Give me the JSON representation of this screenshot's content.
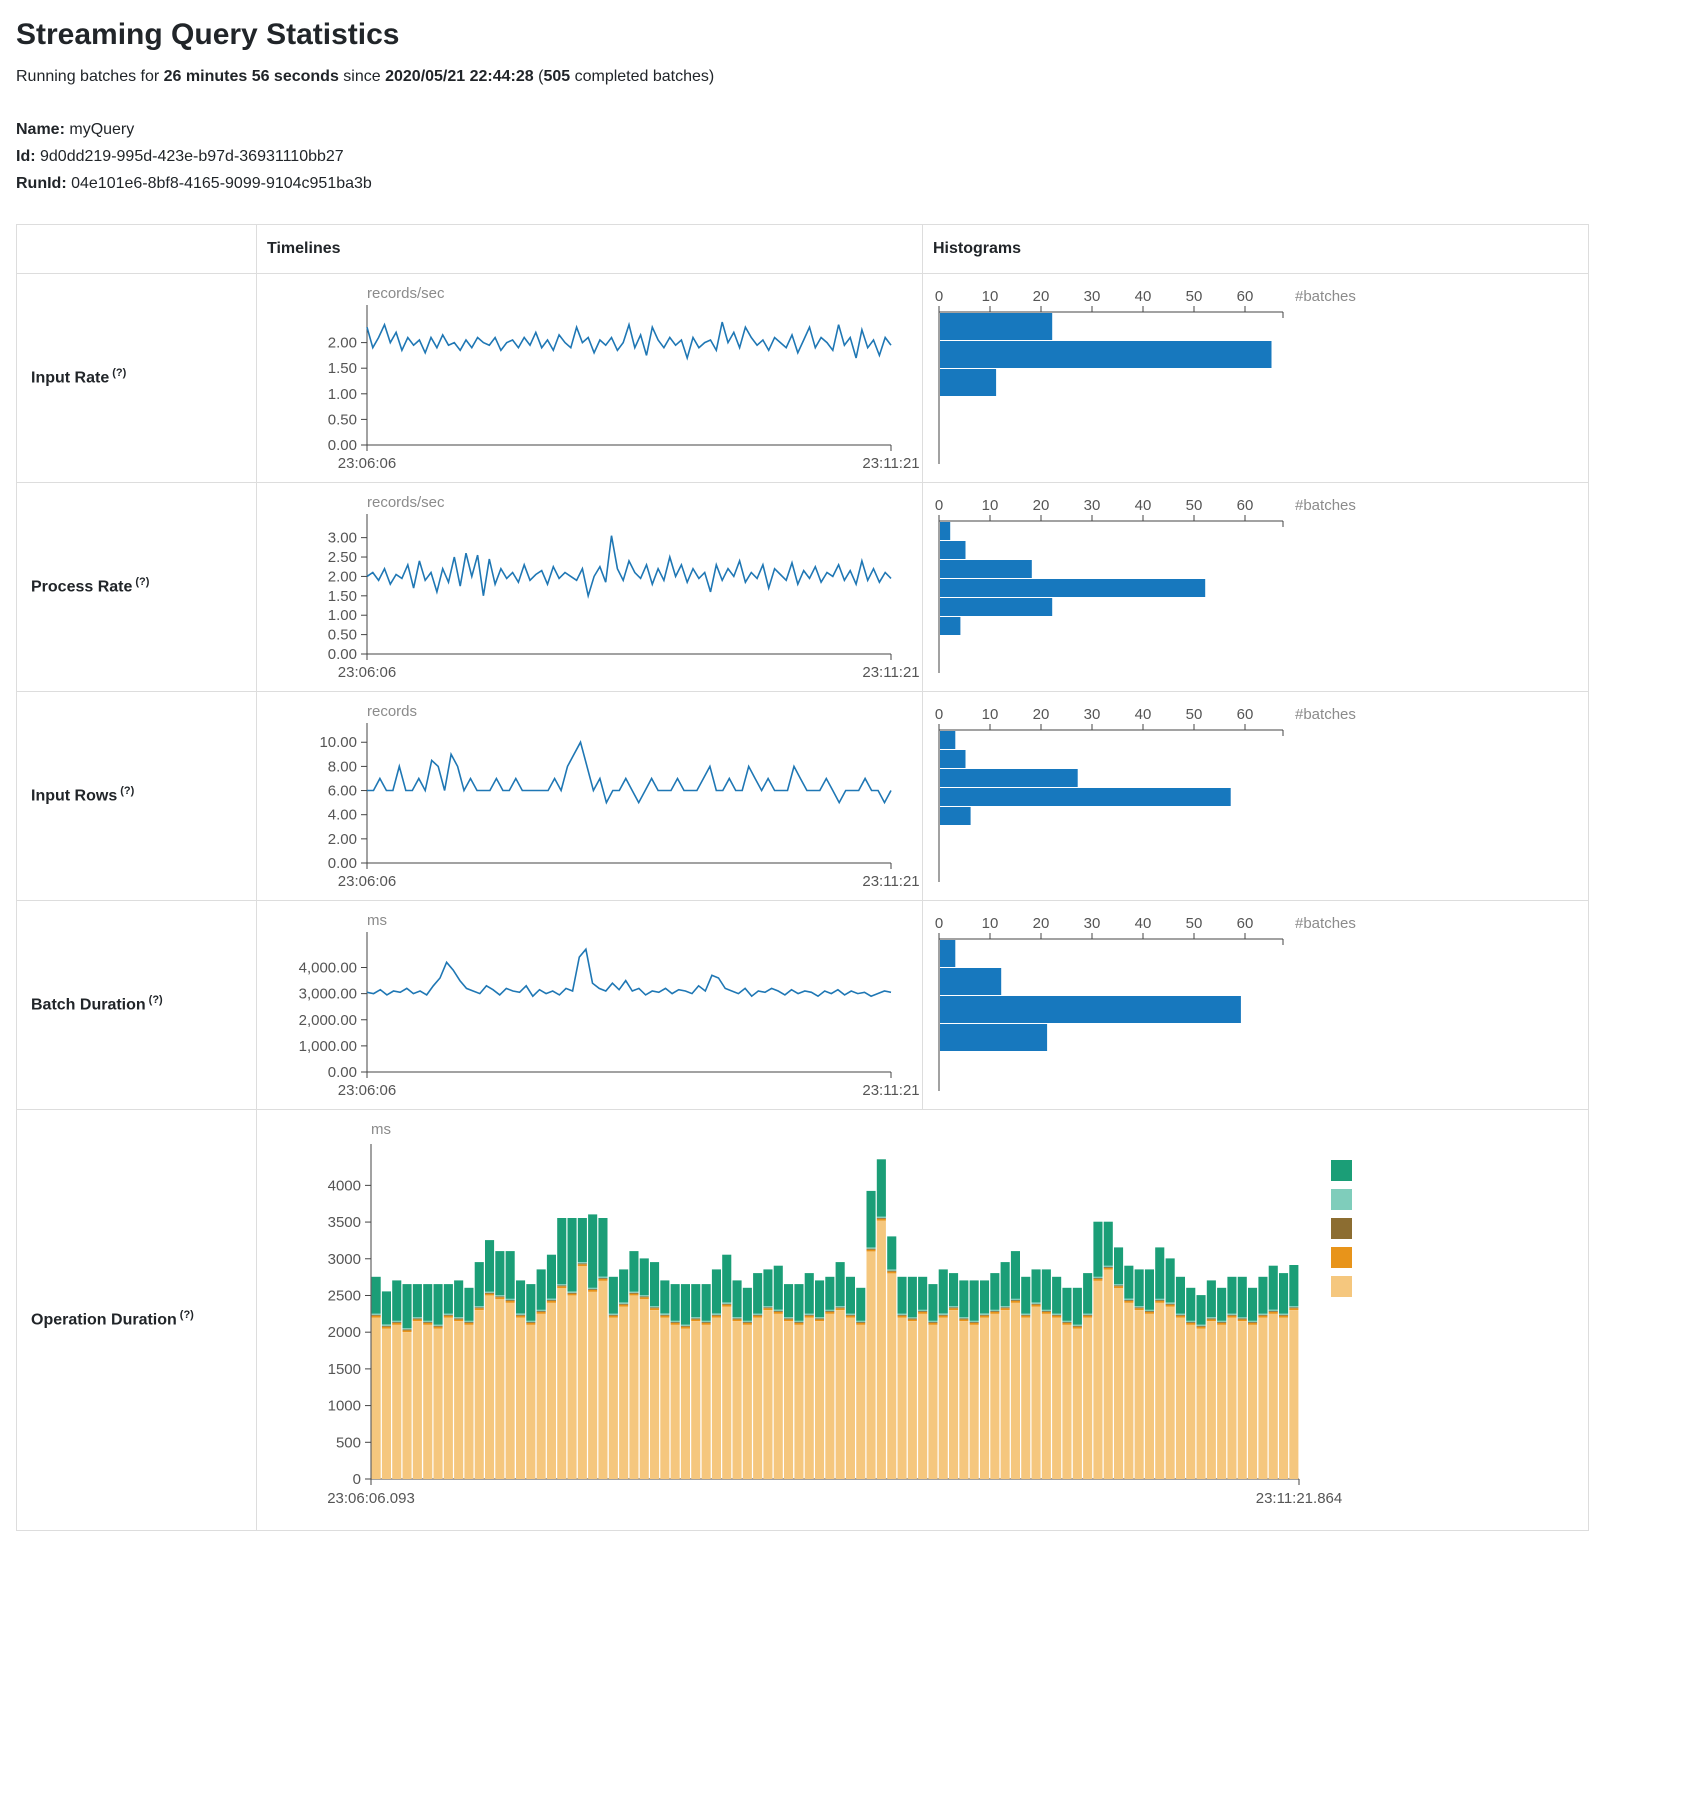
{
  "page": {
    "title": "Streaming Query Statistics",
    "subtitle": {
      "prefix": "Running batches for ",
      "duration": "26 minutes 56 seconds",
      "since": " since ",
      "start_time": "2020/05/21 22:44:28",
      "paren": " (",
      "completed_batches": "505",
      "suffix": " completed batches)"
    },
    "query": {
      "name_label": "Name:",
      "name_value": "myQuery",
      "id_label": "Id:",
      "id_value": "9d0dd219-995d-423e-b97d-36931110bb27",
      "runid_label": "RunId:",
      "runid_value": "04e101e6-8bf8-4165-9099-9104c951ba3b"
    }
  },
  "table": {
    "timelines_header": "Timelines",
    "histograms_header": "Histograms",
    "help_marker": "(?)",
    "row_labels": [
      "Input Rate",
      "Process Rate",
      "Input Rows",
      "Batch Duration",
      "Operation Duration"
    ]
  },
  "colors": {
    "line": "#1f77b4",
    "hist": "#1778be",
    "axis": "#444444",
    "tick_text": "#555555",
    "unit_text": "#8b8b8b",
    "border": "#dddddd"
  },
  "chart_data": [
    {
      "id": "input-rate-timeline",
      "type": "line",
      "row": "Input Rate",
      "unit": "records/sec",
      "x_start_label": "23:06:06",
      "x_end_label": "23:11:21",
      "ylim": [
        0,
        2.5
      ],
      "yticks": [
        {
          "v": 0,
          "label": "0.00"
        },
        {
          "v": 0.5,
          "label": "0.50"
        },
        {
          "v": 1,
          "label": "1.00"
        },
        {
          "v": 1.5,
          "label": "1.50"
        },
        {
          "v": 2,
          "label": "2.00"
        }
      ],
      "values": [
        2.3,
        1.9,
        2.1,
        2.35,
        2.0,
        2.2,
        1.85,
        2.1,
        1.95,
        2.05,
        1.8,
        2.1,
        1.9,
        2.15,
        1.95,
        2.0,
        1.85,
        2.05,
        1.9,
        2.1,
        2.0,
        1.95,
        2.1,
        1.85,
        2.0,
        2.05,
        1.9,
        2.1,
        1.95,
        2.2,
        1.9,
        2.05,
        1.85,
        2.15,
        2.0,
        1.9,
        2.3,
        2.0,
        2.1,
        1.8,
        2.05,
        1.95,
        2.1,
        1.85,
        2.0,
        2.35,
        1.9,
        2.15,
        1.75,
        2.3,
        2.05,
        1.9,
        2.1,
        1.95,
        2.05,
        1.7,
        2.1,
        1.9,
        2.0,
        2.05,
        1.85,
        2.4,
        2.0,
        2.2,
        1.9,
        2.3,
        2.1,
        1.95,
        2.05,
        1.85,
        2.1,
        2.0,
        1.9,
        2.15,
        1.8,
        2.05,
        2.3,
        1.9,
        2.1,
        2.0,
        1.85,
        2.35,
        1.95,
        2.1,
        1.7,
        2.25,
        1.9,
        2.05,
        1.75,
        2.1,
        1.95
      ]
    },
    {
      "id": "input-rate-histogram",
      "type": "hbar",
      "row": "Input Rate",
      "xlabel": "#batches",
      "xticks": [
        0,
        10,
        20,
        30,
        40,
        50,
        60
      ],
      "counts": [
        22,
        65,
        11
      ]
    },
    {
      "id": "process-rate-timeline",
      "type": "line",
      "row": "Process Rate",
      "unit": "records/sec",
      "x_start_label": "23:06:06",
      "x_end_label": "23:11:21",
      "ylim": [
        0,
        3.3
      ],
      "yticks": [
        {
          "v": 0,
          "label": "0.00"
        },
        {
          "v": 0.5,
          "label": "0.50"
        },
        {
          "v": 1,
          "label": "1.00"
        },
        {
          "v": 1.5,
          "label": "1.50"
        },
        {
          "v": 2,
          "label": "2.00"
        },
        {
          "v": 2.5,
          "label": "2.50"
        },
        {
          "v": 3,
          "label": "3.00"
        }
      ],
      "values": [
        2.0,
        2.1,
        1.9,
        2.2,
        1.8,
        2.05,
        1.95,
        2.3,
        1.7,
        2.4,
        1.9,
        2.1,
        1.6,
        2.2,
        1.85,
        2.5,
        1.75,
        2.6,
        2.0,
        2.55,
        1.5,
        2.45,
        1.8,
        2.2,
        1.95,
        2.1,
        1.85,
        2.3,
        1.9,
        2.05,
        2.15,
        1.8,
        2.25,
        1.95,
        2.1,
        2.0,
        1.9,
        2.2,
        1.5,
        2.0,
        2.25,
        1.85,
        3.05,
        2.2,
        1.9,
        2.4,
        2.1,
        1.95,
        2.3,
        1.8,
        2.2,
        1.9,
        2.5,
        2.0,
        2.3,
        1.85,
        2.2,
        1.95,
        2.1,
        1.6,
        2.3,
        1.9,
        2.2,
        2.0,
        2.4,
        1.85,
        2.1,
        1.95,
        2.3,
        1.7,
        2.2,
        2.05,
        1.9,
        2.35,
        1.8,
        2.15,
        1.95,
        2.25,
        1.85,
        2.1,
        2.0,
        2.3,
        1.9,
        2.15,
        1.8,
        2.4,
        1.9,
        2.2,
        1.85,
        2.1,
        1.95
      ]
    },
    {
      "id": "process-rate-histogram",
      "type": "hbar",
      "row": "Process Rate",
      "xlabel": "#batches",
      "xticks": [
        0,
        10,
        20,
        30,
        40,
        50,
        60
      ],
      "counts": [
        2,
        5,
        18,
        52,
        22,
        4
      ]
    },
    {
      "id": "input-rows-timeline",
      "type": "line",
      "row": "Input Rows",
      "unit": "records",
      "x_start_label": "23:06:06",
      "x_end_label": "23:11:21",
      "ylim": [
        0,
        10.6
      ],
      "yticks": [
        {
          "v": 0,
          "label": "0.00"
        },
        {
          "v": 2,
          "label": "2.00"
        },
        {
          "v": 4,
          "label": "4.00"
        },
        {
          "v": 6,
          "label": "6.00"
        },
        {
          "v": 8,
          "label": "8.00"
        },
        {
          "v": 10,
          "label": "10.00"
        }
      ],
      "values": [
        6,
        6,
        7,
        6,
        6,
        8,
        6,
        6,
        7,
        6,
        8.5,
        8,
        6,
        9,
        8,
        6,
        7,
        6,
        6,
        6,
        7,
        6,
        6,
        7,
        6,
        6,
        6,
        6,
        6,
        7,
        6,
        8,
        9,
        10,
        8,
        6,
        7,
        5,
        6,
        6,
        7,
        6,
        5,
        6,
        7,
        6,
        6,
        6,
        7,
        6,
        6,
        6,
        7,
        8,
        6,
        6,
        7,
        6,
        6,
        8,
        7,
        6,
        7,
        6,
        6,
        6,
        8,
        7,
        6,
        6,
        6,
        7,
        6,
        5,
        6,
        6,
        6,
        7,
        6,
        6,
        5,
        6
      ]
    },
    {
      "id": "input-rows-histogram",
      "type": "hbar",
      "row": "Input Rows",
      "xlabel": "#batches",
      "xticks": [
        0,
        10,
        20,
        30,
        40,
        50,
        60
      ],
      "counts": [
        3,
        5,
        27,
        57,
        6
      ]
    },
    {
      "id": "batch-duration-timeline",
      "type": "line",
      "row": "Batch Duration",
      "unit": "ms",
      "x_start_label": "23:06:06",
      "x_end_label": "23:11:21",
      "ylim": [
        0,
        4900
      ],
      "yticks": [
        {
          "v": 0,
          "label": "0.00"
        },
        {
          "v": 1000,
          "label": "1,000.00"
        },
        {
          "v": 2000,
          "label": "2,000.00"
        },
        {
          "v": 3000,
          "label": "3,000.00"
        },
        {
          "v": 4000,
          "label": "4,000.00"
        }
      ],
      "values": [
        3050,
        3000,
        3150,
        2950,
        3100,
        3050,
        3200,
        3000,
        3100,
        2950,
        3300,
        3600,
        4200,
        3900,
        3500,
        3200,
        3100,
        3000,
        3300,
        3150,
        2950,
        3200,
        3100,
        3050,
        3300,
        2900,
        3150,
        3000,
        3100,
        2950,
        3200,
        3100,
        4400,
        4700,
        3400,
        3200,
        3100,
        3400,
        3150,
        3500,
        3100,
        3200,
        2950,
        3100,
        3050,
        3200,
        3000,
        3150,
        3100,
        3000,
        3300,
        3100,
        3700,
        3600,
        3200,
        3100,
        3000,
        3200,
        2900,
        3100,
        3050,
        3200,
        3100,
        2950,
        3150,
        3000,
        3100,
        3050,
        2900,
        3100,
        3000,
        3150,
        2950,
        3100,
        3000,
        3050,
        2900,
        3000,
        3100,
        3050
      ]
    },
    {
      "id": "batch-duration-histogram",
      "type": "hbar",
      "row": "Batch Duration",
      "xlabel": "#batches",
      "xticks": [
        0,
        10,
        20,
        30,
        40,
        50,
        60
      ],
      "counts": [
        3,
        12,
        59,
        21
      ]
    },
    {
      "id": "operation-duration-stacked",
      "type": "stacked-bar",
      "row": "Operation Duration",
      "unit": "ms",
      "x_start_label": "23:06:06.093",
      "x_end_label": "23:11:21.864",
      "ylim": [
        0,
        4400
      ],
      "yticks": [
        {
          "v": 0,
          "label": "0"
        },
        {
          "v": 500,
          "label": "500"
        },
        {
          "v": 1000,
          "label": "1000"
        },
        {
          "v": 1500,
          "label": "1500"
        },
        {
          "v": 2000,
          "label": "2000"
        },
        {
          "v": 2500,
          "label": "2500"
        },
        {
          "v": 3000,
          "label": "3000"
        },
        {
          "v": 3500,
          "label": "3500"
        },
        {
          "v": 4000,
          "label": "4000"
        }
      ],
      "series": [
        {
          "name": "light-orange-segment",
          "color": "#f5c77e",
          "values": [
            2200,
            2050,
            2100,
            2000,
            2150,
            2100,
            2050,
            2200,
            2150,
            2100,
            2300,
            2500,
            2450,
            2400,
            2200,
            2100,
            2250,
            2400,
            2600,
            2500,
            2900,
            2550,
            2700,
            2200,
            2350,
            2500,
            2450,
            2300,
            2200,
            2100,
            2050,
            2150,
            2100,
            2200,
            2350,
            2150,
            2100,
            2200,
            2300,
            2250,
            2150,
            2100,
            2200,
            2150,
            2250,
            2300,
            2200,
            2100,
            3100,
            3520,
            2800,
            2200,
            2150,
            2250,
            2100,
            2200,
            2300,
            2150,
            2100,
            2200,
            2250,
            2300,
            2400,
            2200,
            2350,
            2250,
            2200,
            2100,
            2050,
            2200,
            2700,
            2850,
            2600,
            2400,
            2300,
            2250,
            2400,
            2350,
            2200,
            2100,
            2050,
            2150,
            2100,
            2200,
            2150,
            2100,
            2200,
            2250,
            2200,
            2300
          ]
        },
        {
          "name": "orange-segment",
          "color": "#e8941a",
          "constant": 25
        },
        {
          "name": "dark-brown-segment",
          "color": "#8c6d31",
          "constant": 12
        },
        {
          "name": "light-teal-segment",
          "color": "#7fcdbb",
          "constant": 18
        },
        {
          "name": "teal-segment",
          "color": "#1b9e77",
          "values": [
            500,
            450,
            550,
            600,
            450,
            500,
            550,
            400,
            500,
            450,
            600,
            700,
            600,
            650,
            450,
            500,
            550,
            600,
            900,
            1000,
            600,
            1000,
            800,
            500,
            450,
            550,
            500,
            600,
            450,
            500,
            550,
            450,
            500,
            600,
            650,
            500,
            450,
            550,
            500,
            600,
            450,
            500,
            550,
            500,
            450,
            600,
            500,
            450,
            770,
            780,
            450,
            500,
            550,
            450,
            500,
            600,
            450,
            500,
            550,
            450,
            500,
            600,
            650,
            500,
            450,
            550,
            500,
            450,
            500,
            550,
            750,
            600,
            500,
            450,
            500,
            550,
            700,
            600,
            500,
            450,
            400,
            500,
            450,
            500,
            550,
            450,
            500,
            600,
            550,
            560
          ]
        }
      ]
    }
  ]
}
